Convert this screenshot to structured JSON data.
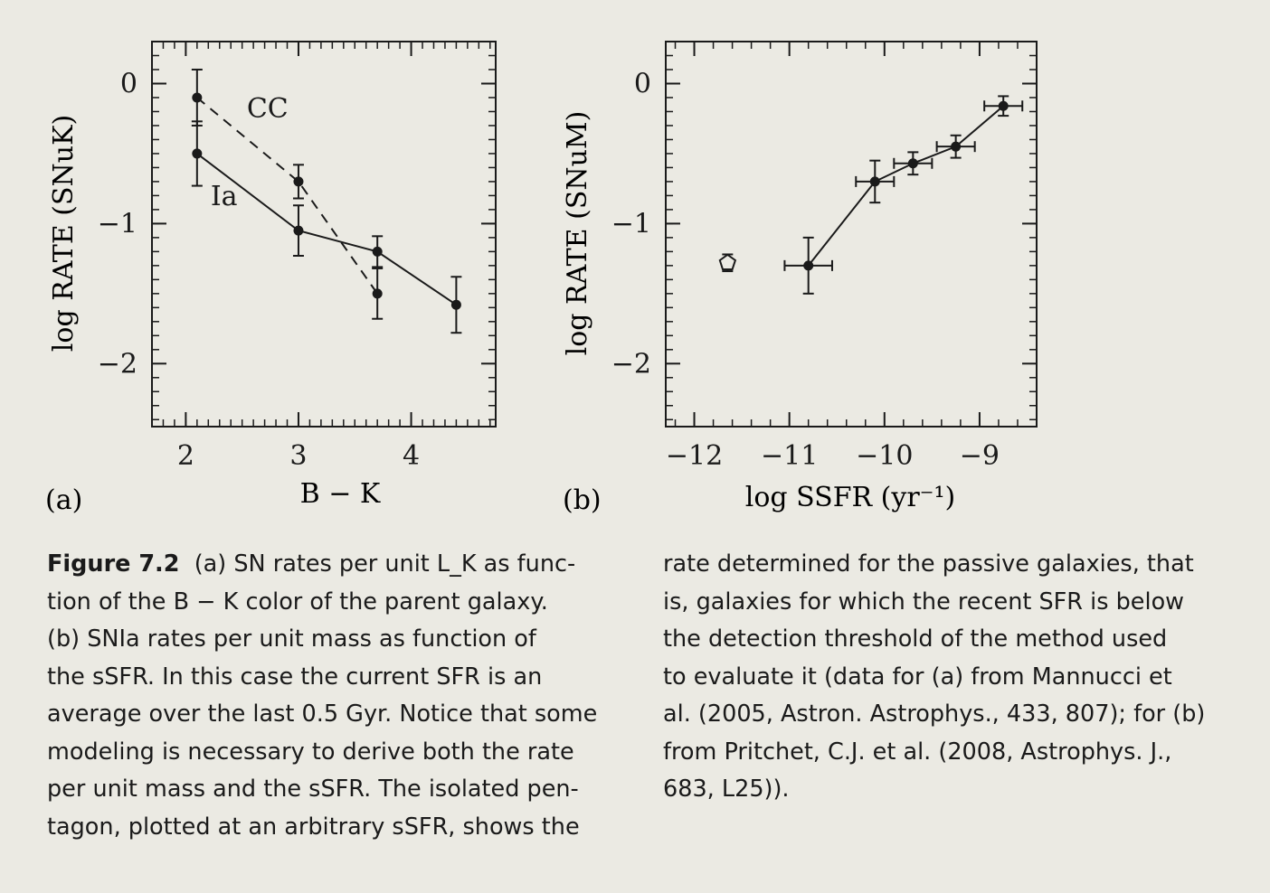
{
  "caption": {
    "figure_label": "Figure 7.2",
    "left_lines": [
      "(a) SN rates per unit L_K as func-",
      "tion of the B − K color of the parent galaxy.",
      "(b) SNIa rates per unit mass as function of",
      "the sSFR. In this case the current SFR is an",
      "average over the last 0.5 Gyr. Notice that some",
      "modeling is necessary to derive both the rate",
      "per unit mass and the sSFR. The isolated pen-",
      "tagon, plotted at an arbitrary sSFR, shows the"
    ],
    "right_lines": [
      "rate determined for the passive galaxies, that",
      "is, galaxies for which the recent SFR is below",
      "the detection threshold of the method used",
      "to evaluate it (data for (a) from Mannucci et",
      "al. (2005, Astron. Astrophys., 433, 807); for (b)",
      "from Pritchet, C.J. et al. (2008, Astrophys. J.,",
      "683, L25))."
    ]
  },
  "chart_data": [
    {
      "panel": "(a)",
      "type": "line",
      "xlabel": "B − K",
      "ylabel": "log RATE (SNuK)",
      "xlim": [
        1.7,
        4.75
      ],
      "ylim": [
        -2.45,
        0.3
      ],
      "xticks": [
        2,
        3,
        4
      ],
      "xtick_labels": [
        "2",
        "3",
        "4"
      ],
      "yticks": [
        0,
        -1,
        -2
      ],
      "ytick_labels": [
        "0",
        "−1",
        "−2"
      ],
      "series": [
        {
          "name": "CC",
          "style": "dashed",
          "x": [
            2.1,
            3.0,
            3.7
          ],
          "y": [
            -0.1,
            -0.7,
            -1.5
          ],
          "yerr": [
            0.2,
            0.12,
            0.18
          ]
        },
        {
          "name": "Ia",
          "style": "solid",
          "x": [
            2.1,
            3.0,
            3.7,
            4.4
          ],
          "y": [
            -0.5,
            -1.05,
            -1.2,
            -1.58
          ],
          "yerr": [
            0.23,
            0.18,
            0.11,
            0.2
          ]
        }
      ]
    },
    {
      "panel": "(b)",
      "type": "scatter",
      "xlabel": "log SSFR (yr⁻¹)",
      "ylabel": "log RATE (SNuM)",
      "xlim": [
        -12.3,
        -8.4
      ],
      "ylim": [
        -2.45,
        0.3
      ],
      "xticks": [
        -12,
        -11,
        -10,
        -9
      ],
      "xtick_labels": [
        "−12",
        "−11",
        "−10",
        "−9"
      ],
      "yticks": [
        0,
        -1,
        -2
      ],
      "ytick_labels": [
        "0",
        "−1",
        "−2"
      ],
      "series": [
        {
          "name": "",
          "style": "solid",
          "x": [
            -10.8,
            -10.1,
            -9.7,
            -9.25,
            -8.75
          ],
          "y": [
            -1.3,
            -0.7,
            -0.57,
            -0.45,
            -0.16
          ],
          "xerr": [
            0.25,
            0.2,
            0.2,
            0.2,
            0.2
          ],
          "yerr": [
            0.2,
            0.15,
            0.08,
            0.08,
            0.07
          ]
        },
        {
          "name": "",
          "marker": "open-pentagon",
          "x": [
            -11.65
          ],
          "y": [
            -1.28
          ],
          "yerr": [
            0.06
          ]
        }
      ]
    }
  ]
}
